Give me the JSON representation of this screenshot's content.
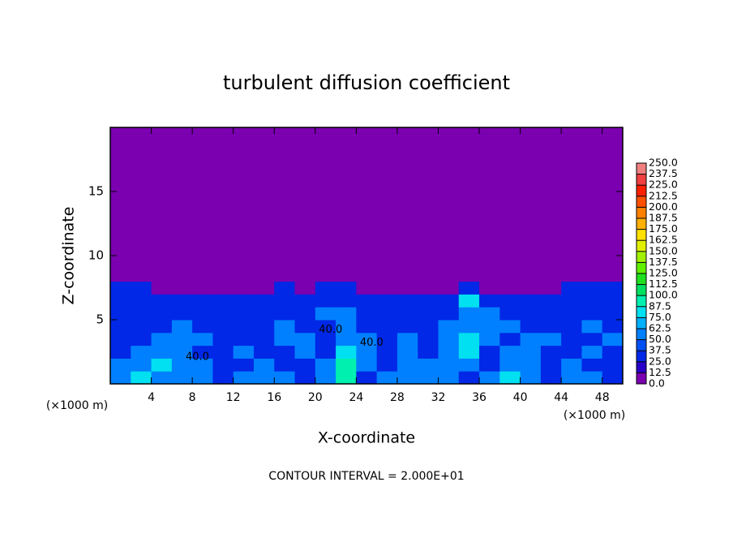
{
  "chart_data": {
    "type": "heatmap",
    "title": "turbulent diffusion coefficient",
    "x_label": "X-coordinate",
    "y_label": "Z-coordinate",
    "x_unit": "(×1000 m)",
    "footer": "CONTOUR INTERVAL = 2.000E+01",
    "xlim": [
      0,
      50
    ],
    "ylim": [
      0,
      20
    ],
    "xticks": [
      4,
      8,
      12,
      16,
      20,
      24,
      28,
      32,
      36,
      40,
      44,
      48
    ],
    "yticks": [
      5,
      10,
      15
    ],
    "xbins": [
      0,
      2,
      4,
      6,
      8,
      10,
      12,
      14,
      16,
      18,
      20,
      22,
      24,
      26,
      28,
      30,
      32,
      34,
      36,
      38,
      40,
      42,
      44,
      46,
      48,
      50
    ],
    "ybins": [
      0,
      1,
      2,
      3,
      4,
      5,
      6,
      7,
      8,
      9,
      10,
      20
    ],
    "z": [
      [
        62,
        75,
        62,
        50,
        50,
        37,
        50,
        50,
        50,
        37,
        50,
        90,
        37,
        50,
        50,
        50,
        50,
        37,
        62,
        75,
        50,
        37,
        50,
        50,
        37
      ],
      [
        50,
        62,
        75,
        62,
        50,
        37,
        37,
        50,
        37,
        37,
        50,
        90,
        50,
        37,
        50,
        50,
        62,
        50,
        37,
        62,
        50,
        37,
        50,
        37,
        37
      ],
      [
        37,
        50,
        62,
        50,
        37,
        37,
        50,
        37,
        37,
        50,
        37,
        75,
        50,
        37,
        50,
        37,
        62,
        75,
        37,
        50,
        62,
        37,
        37,
        50,
        37
      ],
      [
        37,
        37,
        50,
        62,
        50,
        37,
        37,
        37,
        50,
        50,
        37,
        62,
        62,
        37,
        50,
        37,
        50,
        75,
        50,
        37,
        62,
        50,
        37,
        37,
        50
      ],
      [
        25,
        37,
        37,
        50,
        37,
        25,
        37,
        37,
        50,
        37,
        37,
        62,
        37,
        37,
        37,
        37,
        62,
        62,
        62,
        62,
        37,
        37,
        37,
        50,
        37
      ],
      [
        25,
        37,
        25,
        37,
        25,
        25,
        37,
        37,
        37,
        25,
        50,
        50,
        37,
        25,
        37,
        25,
        37,
        62,
        50,
        37,
        25,
        37,
        25,
        37,
        37
      ],
      [
        25,
        25,
        25,
        25,
        25,
        25,
        25,
        25,
        37,
        25,
        37,
        37,
        25,
        25,
        25,
        25,
        25,
        75,
        37,
        25,
        25,
        25,
        25,
        37,
        25
      ],
      [
        25,
        25,
        12,
        12,
        0,
        0,
        12,
        12,
        25,
        12,
        25,
        25,
        12,
        0,
        12,
        12,
        12,
        25,
        12,
        12,
        12,
        12,
        25,
        25,
        25
      ],
      [
        12,
        12,
        0,
        0,
        0,
        0,
        0,
        0,
        0,
        0,
        12,
        12,
        0,
        0,
        0,
        0,
        0,
        12,
        0,
        0,
        0,
        0,
        0,
        12,
        12
      ],
      [
        12,
        0,
        0,
        0,
        0,
        0,
        0,
        0,
        0,
        0,
        0,
        0,
        0,
        0,
        0,
        0,
        0,
        0,
        0,
        0,
        0,
        0,
        0,
        0,
        12
      ],
      [
        0,
        0,
        0,
        0,
        0,
        0,
        0,
        0,
        0,
        0,
        0,
        0,
        0,
        0,
        0,
        0,
        0,
        0,
        0,
        0,
        0,
        0,
        0,
        0,
        0
      ]
    ],
    "levels": [
      {
        "value": 0,
        "label": "0.0"
      },
      {
        "value": 12.5,
        "label": "12.5"
      },
      {
        "value": 25,
        "label": "25.0"
      },
      {
        "value": 37.5,
        "label": "37.5"
      },
      {
        "value": 50,
        "label": "50.0"
      },
      {
        "value": 62.5,
        "label": "62.5"
      },
      {
        "value": 75,
        "label": "75.0"
      },
      {
        "value": 87.5,
        "label": "87.5"
      },
      {
        "value": 100,
        "label": "100.0"
      },
      {
        "value": 112.5,
        "label": "112.5"
      },
      {
        "value": 125,
        "label": "125.0"
      },
      {
        "value": 137.5,
        "label": "137.5"
      },
      {
        "value": 150,
        "label": "150.0"
      },
      {
        "value": 162.5,
        "label": "162.5"
      },
      {
        "value": 175,
        "label": "175.0"
      },
      {
        "value": 187.5,
        "label": "187.5"
      },
      {
        "value": 200,
        "label": "200.0"
      },
      {
        "value": 212.5,
        "label": "212.5"
      },
      {
        "value": 225,
        "label": "225.0"
      },
      {
        "value": 237.5,
        "label": "237.5"
      },
      {
        "value": 250,
        "label": "250.0"
      }
    ],
    "colors": [
      "#7a00b0",
      "#2800c8",
      "#0028e6",
      "#0050f5",
      "#0080ff",
      "#00b0ff",
      "#00e0f0",
      "#00f0b0",
      "#00e060",
      "#20e020",
      "#60f000",
      "#a0f000",
      "#e0f000",
      "#ffe000",
      "#ffb000",
      "#ff8000",
      "#ff5000",
      "#ff2000",
      "#f04040",
      "#f08080"
    ],
    "contour_labels": [
      {
        "text": "40.0",
        "x": 8.5,
        "y": 2.1
      },
      {
        "text": "40.0",
        "x": 21.5,
        "y": 4.2
      },
      {
        "text": "40.0",
        "x": 25.5,
        "y": 3.2
      }
    ]
  }
}
